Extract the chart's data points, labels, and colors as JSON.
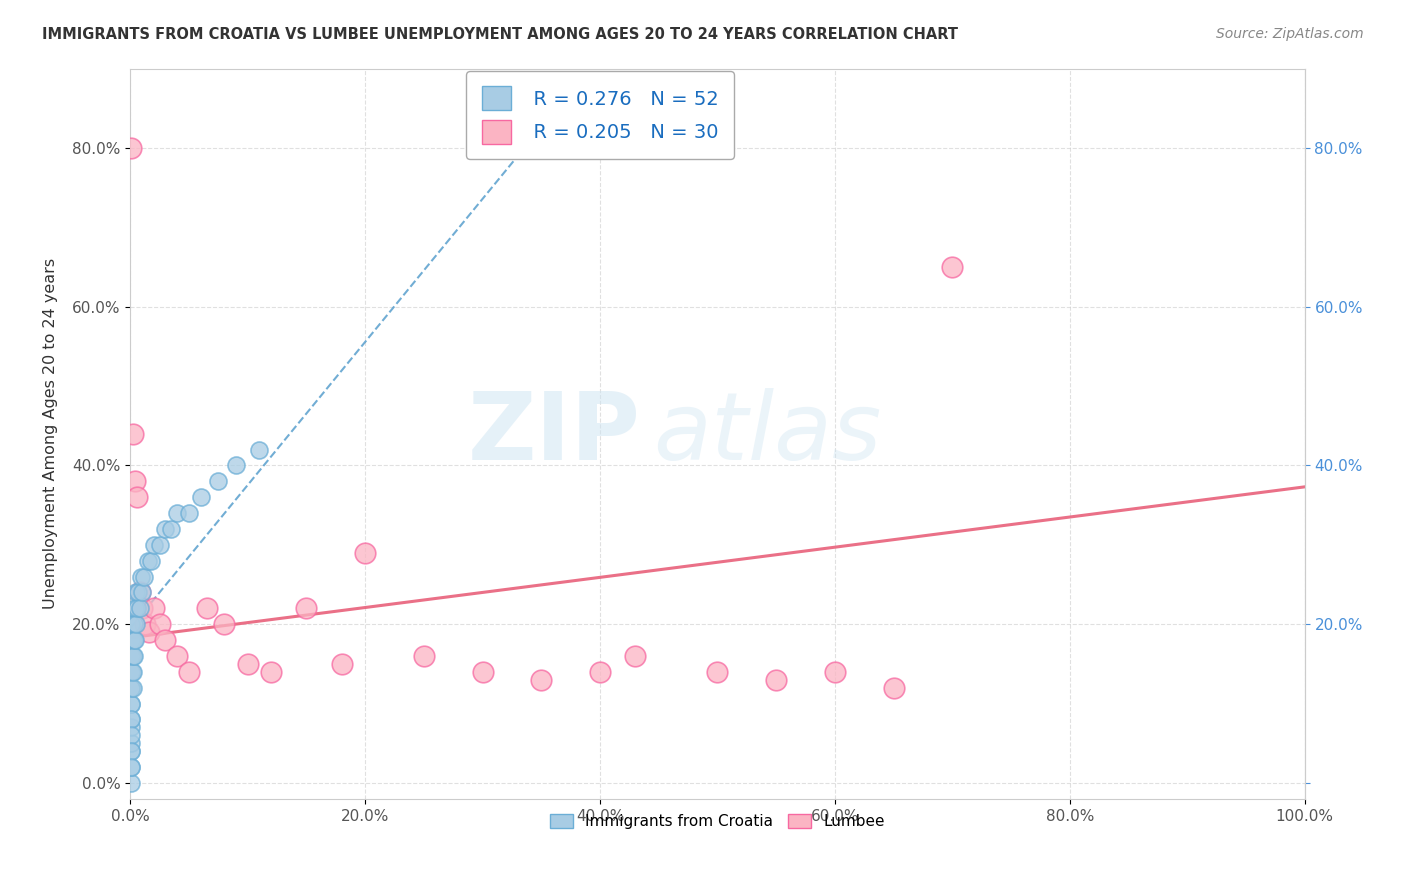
{
  "title": "IMMIGRANTS FROM CROATIA VS LUMBEE UNEMPLOYMENT AMONG AGES 20 TO 24 YEARS CORRELATION CHART",
  "source": "Source: ZipAtlas.com",
  "ylabel": "Unemployment Among Ages 20 to 24 years",
  "xlim": [
    0,
    1.0
  ],
  "ylim": [
    -0.02,
    0.9
  ],
  "yticks": [
    0.0,
    0.2,
    0.4,
    0.6,
    0.8
  ],
  "ytick_labels_left": [
    "0.0%",
    "20.0%",
    "40.0%",
    "60.0%",
    "80.0%"
  ],
  "ytick_labels_right": [
    "",
    "20.0%",
    "40.0%",
    "60.0%",
    "80.0%"
  ],
  "xtick_labels": [
    "0.0%",
    "20.0%",
    "40.0%",
    "60.0%",
    "80.0%",
    "100.0%"
  ],
  "xticks": [
    0.0,
    0.2,
    0.4,
    0.6,
    0.8,
    1.0
  ],
  "watermark_zip": "ZIP",
  "watermark_atlas": "atlas",
  "legend_R1": "R = 0.276",
  "legend_N1": "N = 52",
  "legend_R2": "R = 0.205",
  "legend_N2": "N = 30",
  "color_blue": "#a8cce4",
  "color_blue_edge": "#6baed6",
  "color_pink": "#fbb4c3",
  "color_pink_edge": "#f768a1",
  "color_line_blue": "#4292c6",
  "color_line_pink": "#e8607a",
  "background": "#ffffff",
  "grid_color": "#cccccc",
  "croatia_x": [
    0.0005,
    0.0005,
    0.0005,
    0.0005,
    0.0005,
    0.0005,
    0.0005,
    0.0005,
    0.0005,
    0.0005,
    0.001,
    0.001,
    0.001,
    0.001,
    0.001,
    0.001,
    0.001,
    0.001,
    0.001,
    0.001,
    0.0015,
    0.0015,
    0.0015,
    0.002,
    0.002,
    0.002,
    0.002,
    0.003,
    0.003,
    0.003,
    0.004,
    0.004,
    0.005,
    0.005,
    0.006,
    0.007,
    0.008,
    0.009,
    0.01,
    0.012,
    0.015,
    0.018,
    0.02,
    0.025,
    0.03,
    0.035,
    0.04,
    0.05,
    0.06,
    0.075,
    0.09,
    0.11
  ],
  "croatia_y": [
    0.0,
    0.02,
    0.04,
    0.05,
    0.07,
    0.08,
    0.1,
    0.12,
    0.14,
    0.16,
    0.1,
    0.12,
    0.14,
    0.16,
    0.18,
    0.2,
    0.08,
    0.06,
    0.04,
    0.02,
    0.14,
    0.16,
    0.18,
    0.12,
    0.14,
    0.16,
    0.18,
    0.16,
    0.18,
    0.2,
    0.18,
    0.22,
    0.2,
    0.24,
    0.22,
    0.24,
    0.22,
    0.26,
    0.24,
    0.26,
    0.28,
    0.28,
    0.3,
    0.3,
    0.32,
    0.32,
    0.34,
    0.34,
    0.36,
    0.38,
    0.4,
    0.42
  ],
  "lumbee_x": [
    0.001,
    0.002,
    0.004,
    0.006,
    0.008,
    0.01,
    0.013,
    0.016,
    0.02,
    0.025,
    0.03,
    0.04,
    0.05,
    0.065,
    0.08,
    0.1,
    0.12,
    0.15,
    0.18,
    0.2,
    0.25,
    0.3,
    0.35,
    0.4,
    0.43,
    0.5,
    0.55,
    0.6,
    0.65,
    0.7
  ],
  "lumbee_y": [
    0.8,
    0.44,
    0.38,
    0.36,
    0.24,
    0.22,
    0.2,
    0.19,
    0.22,
    0.2,
    0.18,
    0.16,
    0.14,
    0.22,
    0.2,
    0.15,
    0.14,
    0.22,
    0.15,
    0.29,
    0.16,
    0.14,
    0.13,
    0.14,
    0.16,
    0.14,
    0.13,
    0.14,
    0.12,
    0.65
  ],
  "blue_trend_x0": 0.0,
  "blue_trend_y0": 0.195,
  "blue_trend_x1": 0.38,
  "blue_trend_y1": 0.88,
  "pink_trend_x0": 0.0,
  "pink_trend_y0": 0.183,
  "pink_trend_x1": 1.0,
  "pink_trend_y1": 0.373
}
